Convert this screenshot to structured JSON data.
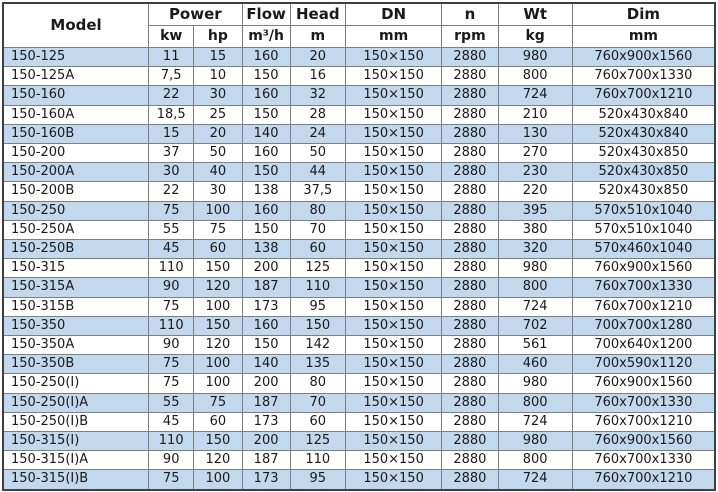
{
  "header": {
    "model": "Model",
    "power": "Power",
    "kw": "kw",
    "hp": "hp",
    "flow": "Flow",
    "flow_unit": "m³/h",
    "head": "Head",
    "head_unit": "m",
    "dn": "DN",
    "dn_unit": "mm",
    "n": "n",
    "n_unit": "rpm",
    "wt": "Wt",
    "wt_unit": "kg",
    "dim": "Dim",
    "dim_unit": "mm"
  },
  "col_keys": [
    "model",
    "kw",
    "hp",
    "flow",
    "head",
    "dn",
    "rpm",
    "wt",
    "dim"
  ],
  "chart_data": {
    "type": "table",
    "columns": [
      "Model",
      "Power kw",
      "Power hp",
      "Flow m³/h",
      "Head m",
      "DN mm",
      "n rpm",
      "Wt kg",
      "Dim mm"
    ],
    "rows": [
      [
        "150-125",
        "11",
        "15",
        "160",
        "20",
        "150×150",
        "2880",
        "980",
        "760x900x1560"
      ],
      [
        "150-125A",
        "7,5",
        "10",
        "150",
        "16",
        "150×150",
        "2880",
        "800",
        "760x700x1330"
      ],
      [
        "150-160",
        "22",
        "30",
        "160",
        "32",
        "150×150",
        "2880",
        "724",
        "760x700x1210"
      ],
      [
        "150-160A",
        "18,5",
        "25",
        "150",
        "28",
        "150×150",
        "2880",
        "210",
        "520x430x840"
      ],
      [
        "150-160B",
        "15",
        "20",
        "140",
        "24",
        "150×150",
        "2880",
        "130",
        "520x430x840"
      ],
      [
        "150-200",
        "37",
        "50",
        "160",
        "50",
        "150×150",
        "2880",
        "270",
        "520x430x850"
      ],
      [
        "150-200A",
        "30",
        "40",
        "150",
        "44",
        "150×150",
        "2880",
        "230",
        "520x430x850"
      ],
      [
        "150-200B",
        "22",
        "30",
        "138",
        "37,5",
        "150×150",
        "2880",
        "220",
        "520x430x850"
      ],
      [
        "150-250",
        "75",
        "100",
        "160",
        "80",
        "150×150",
        "2880",
        "395",
        "570x510x1040"
      ],
      [
        "150-250A",
        "55",
        "75",
        "150",
        "70",
        "150×150",
        "2880",
        "380",
        "570x510x1040"
      ],
      [
        "150-250B",
        "45",
        "60",
        "138",
        "60",
        "150×150",
        "2880",
        "320",
        "570x460x1040"
      ],
      [
        "150-315",
        "110",
        "150",
        "200",
        "125",
        "150×150",
        "2880",
        "980",
        "760x900x1560"
      ],
      [
        "150-315A",
        "90",
        "120",
        "187",
        "110",
        "150×150",
        "2880",
        "800",
        "760x700x1330"
      ],
      [
        "150-315B",
        "75",
        "100",
        "173",
        "95",
        "150×150",
        "2880",
        "724",
        "760x700x1210"
      ],
      [
        "150-350",
        "110",
        "150",
        "160",
        "150",
        "150×150",
        "2880",
        "702",
        "700x700x1280"
      ],
      [
        "150-350A",
        "90",
        "120",
        "150",
        "142",
        "150×150",
        "2880",
        "561",
        "700x640x1200"
      ],
      [
        "150-350B",
        "75",
        "100",
        "140",
        "135",
        "150×150",
        "2880",
        "460",
        "700x590x1120"
      ],
      [
        "150-250(I)",
        "75",
        "100",
        "200",
        "80",
        "150×150",
        "2880",
        "980",
        "760x900x1560"
      ],
      [
        "150-250(I)A",
        "55",
        "75",
        "187",
        "70",
        "150×150",
        "2880",
        "800",
        "760x700x1330"
      ],
      [
        "150-250(I)B",
        "45",
        "60",
        "173",
        "60",
        "150×150",
        "2880",
        "724",
        "760x700x1210"
      ],
      [
        "150-315(I)",
        "110",
        "150",
        "200",
        "125",
        "150×150",
        "2880",
        "980",
        "760x900x1560"
      ],
      [
        "150-315(I)A",
        "90",
        "120",
        "187",
        "110",
        "150×150",
        "2880",
        "800",
        "760x700x1330"
      ],
      [
        "150-315(I)B",
        "75",
        "100",
        "173",
        "95",
        "150×150",
        "2880",
        "724",
        "760x700x1210"
      ]
    ]
  },
  "colors": {
    "stripe": "#C2D8EE",
    "row_alt": "#FFFFFF",
    "border_inner": "#7F7F7F",
    "border_outer": "#404040",
    "text": "#1A1A1A",
    "header_bg": "#FFFFFF"
  }
}
